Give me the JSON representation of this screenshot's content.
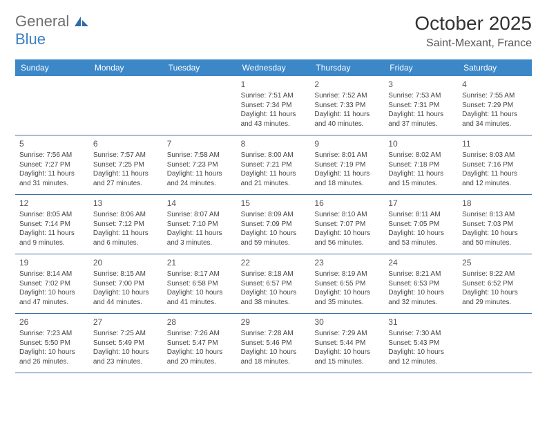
{
  "logo": {
    "general": "General",
    "blue": "Blue"
  },
  "title": "October 2025",
  "location": "Saint-Mexant, France",
  "colors": {
    "header_bg": "#3b87c8",
    "header_text": "#ffffff",
    "week_divider": "#3b6ea0",
    "body_text": "#444444",
    "logo_gray": "#6e6e6e",
    "logo_blue": "#3b7fc4"
  },
  "day_names": [
    "Sunday",
    "Monday",
    "Tuesday",
    "Wednesday",
    "Thursday",
    "Friday",
    "Saturday"
  ],
  "weeks": [
    [
      {
        "n": "",
        "sr": "",
        "ss": "",
        "dl": ""
      },
      {
        "n": "",
        "sr": "",
        "ss": "",
        "dl": ""
      },
      {
        "n": "",
        "sr": "",
        "ss": "",
        "dl": ""
      },
      {
        "n": "1",
        "sr": "Sunrise: 7:51 AM",
        "ss": "Sunset: 7:34 PM",
        "dl": "Daylight: 11 hours and 43 minutes."
      },
      {
        "n": "2",
        "sr": "Sunrise: 7:52 AM",
        "ss": "Sunset: 7:33 PM",
        "dl": "Daylight: 11 hours and 40 minutes."
      },
      {
        "n": "3",
        "sr": "Sunrise: 7:53 AM",
        "ss": "Sunset: 7:31 PM",
        "dl": "Daylight: 11 hours and 37 minutes."
      },
      {
        "n": "4",
        "sr": "Sunrise: 7:55 AM",
        "ss": "Sunset: 7:29 PM",
        "dl": "Daylight: 11 hours and 34 minutes."
      }
    ],
    [
      {
        "n": "5",
        "sr": "Sunrise: 7:56 AM",
        "ss": "Sunset: 7:27 PM",
        "dl": "Daylight: 11 hours and 31 minutes."
      },
      {
        "n": "6",
        "sr": "Sunrise: 7:57 AM",
        "ss": "Sunset: 7:25 PM",
        "dl": "Daylight: 11 hours and 27 minutes."
      },
      {
        "n": "7",
        "sr": "Sunrise: 7:58 AM",
        "ss": "Sunset: 7:23 PM",
        "dl": "Daylight: 11 hours and 24 minutes."
      },
      {
        "n": "8",
        "sr": "Sunrise: 8:00 AM",
        "ss": "Sunset: 7:21 PM",
        "dl": "Daylight: 11 hours and 21 minutes."
      },
      {
        "n": "9",
        "sr": "Sunrise: 8:01 AM",
        "ss": "Sunset: 7:19 PM",
        "dl": "Daylight: 11 hours and 18 minutes."
      },
      {
        "n": "10",
        "sr": "Sunrise: 8:02 AM",
        "ss": "Sunset: 7:18 PM",
        "dl": "Daylight: 11 hours and 15 minutes."
      },
      {
        "n": "11",
        "sr": "Sunrise: 8:03 AM",
        "ss": "Sunset: 7:16 PM",
        "dl": "Daylight: 11 hours and 12 minutes."
      }
    ],
    [
      {
        "n": "12",
        "sr": "Sunrise: 8:05 AM",
        "ss": "Sunset: 7:14 PM",
        "dl": "Daylight: 11 hours and 9 minutes."
      },
      {
        "n": "13",
        "sr": "Sunrise: 8:06 AM",
        "ss": "Sunset: 7:12 PM",
        "dl": "Daylight: 11 hours and 6 minutes."
      },
      {
        "n": "14",
        "sr": "Sunrise: 8:07 AM",
        "ss": "Sunset: 7:10 PM",
        "dl": "Daylight: 11 hours and 3 minutes."
      },
      {
        "n": "15",
        "sr": "Sunrise: 8:09 AM",
        "ss": "Sunset: 7:09 PM",
        "dl": "Daylight: 10 hours and 59 minutes."
      },
      {
        "n": "16",
        "sr": "Sunrise: 8:10 AM",
        "ss": "Sunset: 7:07 PM",
        "dl": "Daylight: 10 hours and 56 minutes."
      },
      {
        "n": "17",
        "sr": "Sunrise: 8:11 AM",
        "ss": "Sunset: 7:05 PM",
        "dl": "Daylight: 10 hours and 53 minutes."
      },
      {
        "n": "18",
        "sr": "Sunrise: 8:13 AM",
        "ss": "Sunset: 7:03 PM",
        "dl": "Daylight: 10 hours and 50 minutes."
      }
    ],
    [
      {
        "n": "19",
        "sr": "Sunrise: 8:14 AM",
        "ss": "Sunset: 7:02 PM",
        "dl": "Daylight: 10 hours and 47 minutes."
      },
      {
        "n": "20",
        "sr": "Sunrise: 8:15 AM",
        "ss": "Sunset: 7:00 PM",
        "dl": "Daylight: 10 hours and 44 minutes."
      },
      {
        "n": "21",
        "sr": "Sunrise: 8:17 AM",
        "ss": "Sunset: 6:58 PM",
        "dl": "Daylight: 10 hours and 41 minutes."
      },
      {
        "n": "22",
        "sr": "Sunrise: 8:18 AM",
        "ss": "Sunset: 6:57 PM",
        "dl": "Daylight: 10 hours and 38 minutes."
      },
      {
        "n": "23",
        "sr": "Sunrise: 8:19 AM",
        "ss": "Sunset: 6:55 PM",
        "dl": "Daylight: 10 hours and 35 minutes."
      },
      {
        "n": "24",
        "sr": "Sunrise: 8:21 AM",
        "ss": "Sunset: 6:53 PM",
        "dl": "Daylight: 10 hours and 32 minutes."
      },
      {
        "n": "25",
        "sr": "Sunrise: 8:22 AM",
        "ss": "Sunset: 6:52 PM",
        "dl": "Daylight: 10 hours and 29 minutes."
      }
    ],
    [
      {
        "n": "26",
        "sr": "Sunrise: 7:23 AM",
        "ss": "Sunset: 5:50 PM",
        "dl": "Daylight: 10 hours and 26 minutes."
      },
      {
        "n": "27",
        "sr": "Sunrise: 7:25 AM",
        "ss": "Sunset: 5:49 PM",
        "dl": "Daylight: 10 hours and 23 minutes."
      },
      {
        "n": "28",
        "sr": "Sunrise: 7:26 AM",
        "ss": "Sunset: 5:47 PM",
        "dl": "Daylight: 10 hours and 20 minutes."
      },
      {
        "n": "29",
        "sr": "Sunrise: 7:28 AM",
        "ss": "Sunset: 5:46 PM",
        "dl": "Daylight: 10 hours and 18 minutes."
      },
      {
        "n": "30",
        "sr": "Sunrise: 7:29 AM",
        "ss": "Sunset: 5:44 PM",
        "dl": "Daylight: 10 hours and 15 minutes."
      },
      {
        "n": "31",
        "sr": "Sunrise: 7:30 AM",
        "ss": "Sunset: 5:43 PM",
        "dl": "Daylight: 10 hours and 12 minutes."
      },
      {
        "n": "",
        "sr": "",
        "ss": "",
        "dl": ""
      }
    ]
  ]
}
